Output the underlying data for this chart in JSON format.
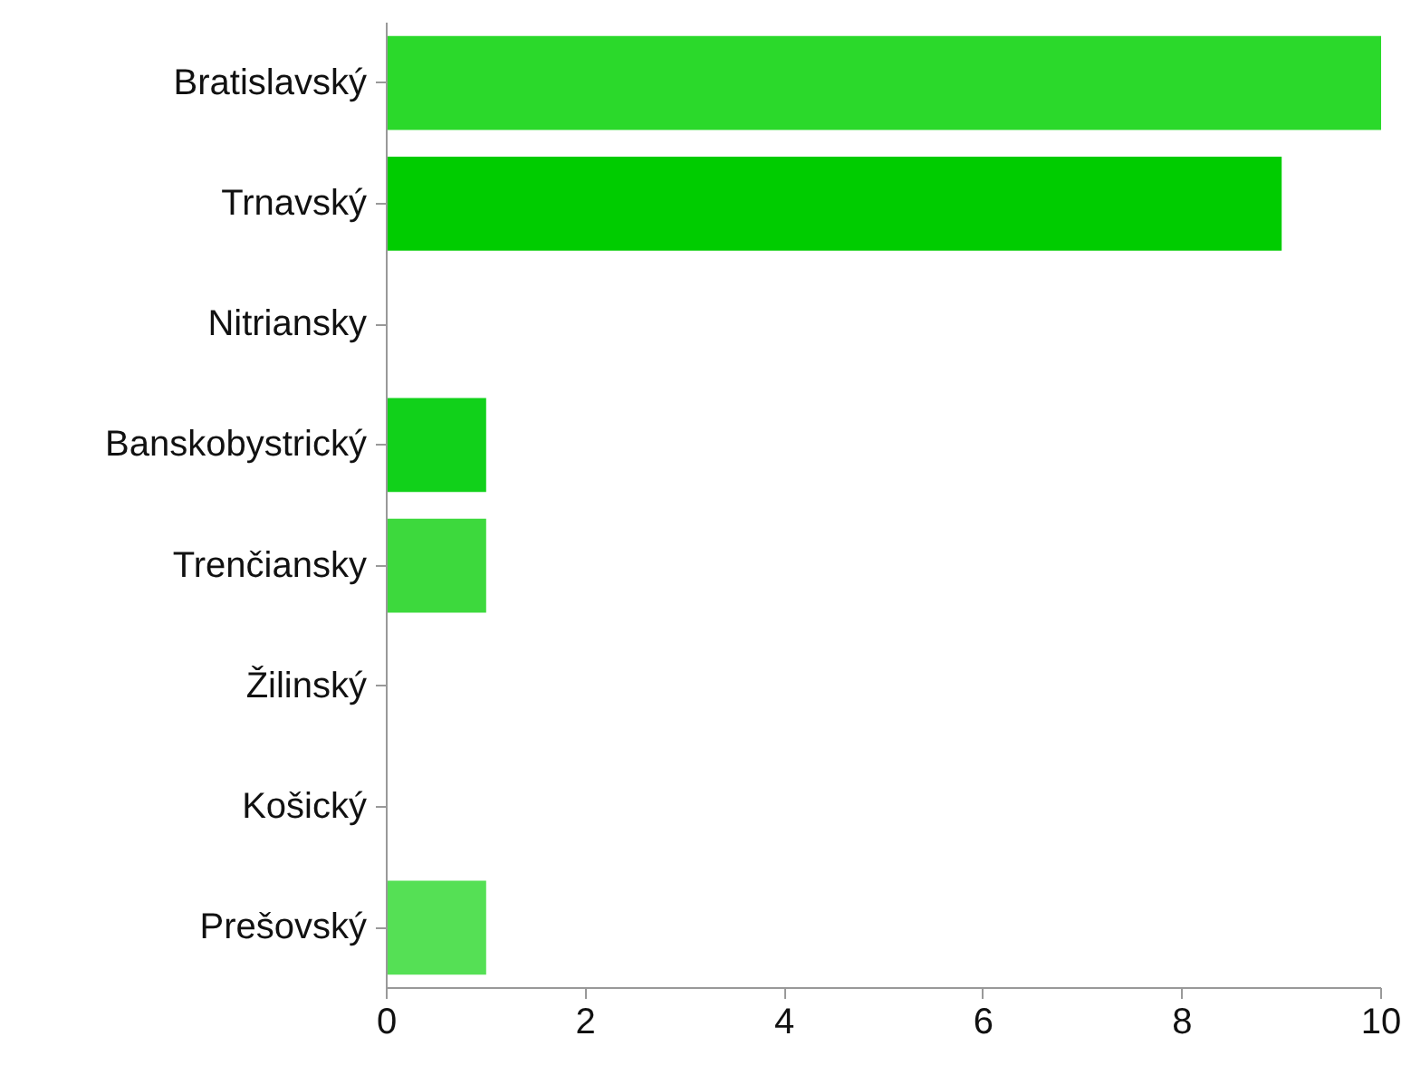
{
  "chart_data": {
    "type": "bar",
    "orientation": "horizontal",
    "categories": [
      "Bratislavský",
      "Trnavský",
      "Nitriansky",
      "Banskobystrický",
      "Trenčiansky",
      "Žilinský",
      "Košický",
      "Prešovský"
    ],
    "values": [
      10,
      9,
      0,
      1,
      1,
      0,
      0,
      1
    ],
    "colors": [
      "#2bd92b",
      "#00cc00",
      "#00cc00",
      "#11d11a",
      "#3dd93d",
      "#44dd44",
      "#44dd44",
      "#55e055"
    ],
    "xlim": [
      0,
      10
    ],
    "xticks": [
      0,
      2,
      4,
      6,
      8,
      10
    ],
    "grid": false
  }
}
